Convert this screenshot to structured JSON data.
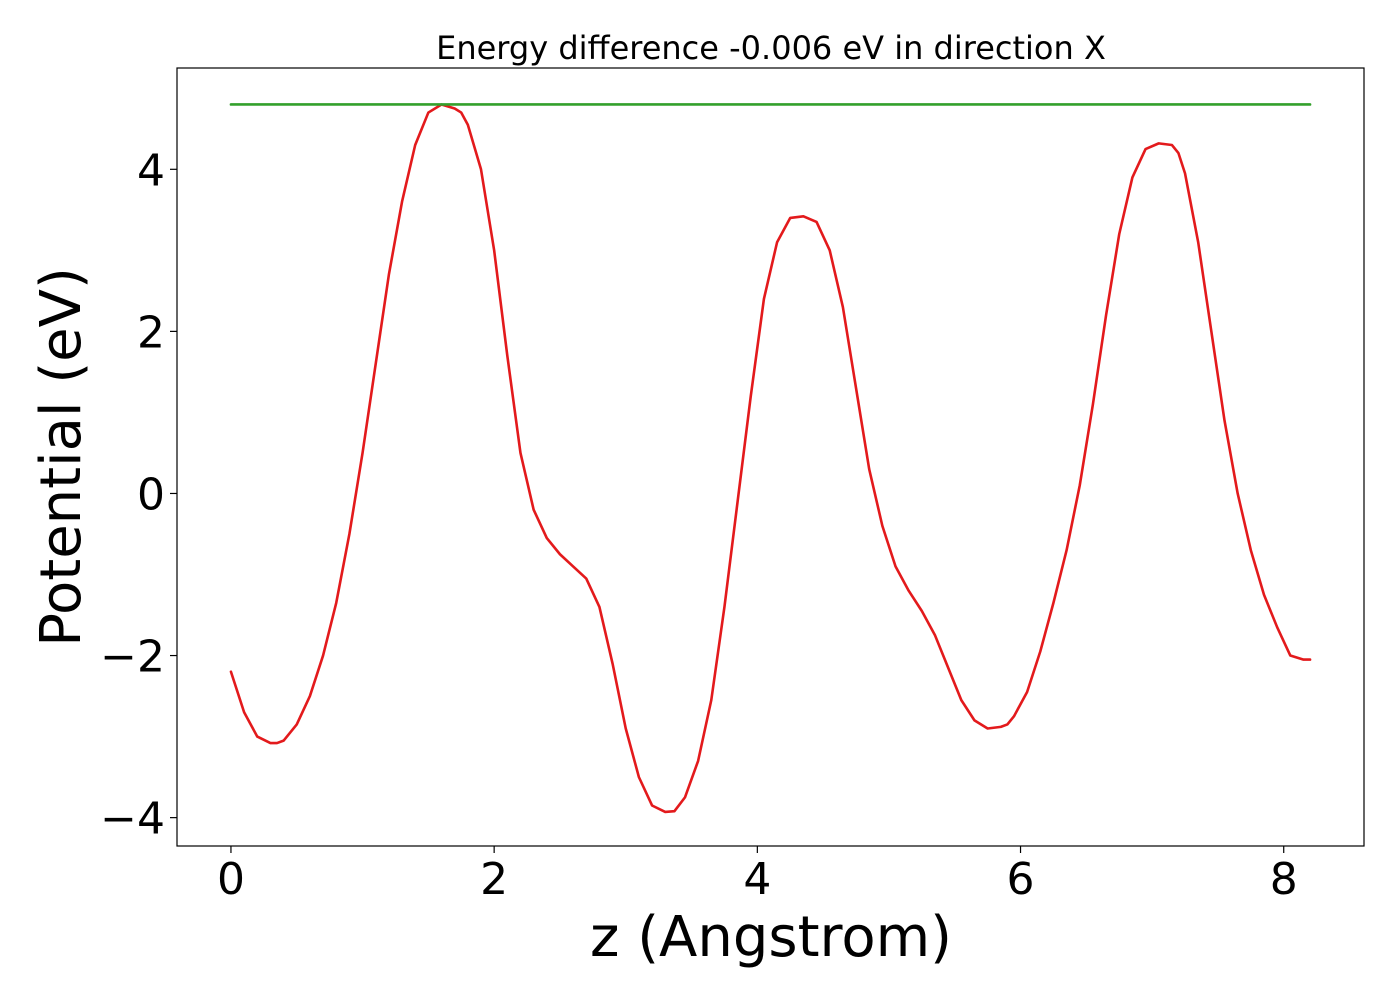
{
  "chart_data": {
    "type": "line",
    "title": "Energy difference -0.006 eV in direction X",
    "xlabel": "z (Angstrom)",
    "ylabel": "Potential (eV)",
    "xlim": [
      -0.41,
      8.61
    ],
    "ylim": [
      -4.35,
      5.25
    ],
    "xticks": [
      0,
      2,
      4,
      6,
      8
    ],
    "yticks": [
      -4,
      -2,
      0,
      2,
      4
    ],
    "xtick_labels": [
      "0",
      "2",
      "4",
      "6",
      "8"
    ],
    "ytick_labels": [
      "−4",
      "−2",
      "0",
      "2",
      "4"
    ],
    "grid": false,
    "legend": "none",
    "series": [
      {
        "color": "#e31a1c",
        "x": [
          0.0,
          0.1,
          0.2,
          0.3,
          0.35,
          0.4,
          0.5,
          0.6,
          0.7,
          0.8,
          0.9,
          1.0,
          1.1,
          1.2,
          1.3,
          1.4,
          1.5,
          1.6,
          1.7,
          1.75,
          1.8,
          1.9,
          2.0,
          2.1,
          2.2,
          2.3,
          2.4,
          2.5,
          2.6,
          2.7,
          2.8,
          2.9,
          3.0,
          3.1,
          3.2,
          3.3,
          3.37,
          3.45,
          3.55,
          3.65,
          3.75,
          3.85,
          3.95,
          4.05,
          4.15,
          4.25,
          4.35,
          4.45,
          4.55,
          4.65,
          4.75,
          4.85,
          4.95,
          5.05,
          5.15,
          5.25,
          5.35,
          5.45,
          5.55,
          5.65,
          5.75,
          5.85,
          5.9,
          5.95,
          6.05,
          6.15,
          6.25,
          6.35,
          6.45,
          6.55,
          6.65,
          6.75,
          6.85,
          6.95,
          7.05,
          7.15,
          7.2,
          7.25,
          7.35,
          7.45,
          7.55,
          7.65,
          7.75,
          7.85,
          7.95,
          8.05,
          8.15,
          8.2
        ],
        "values": [
          -2.2,
          -2.7,
          -3.0,
          -3.08,
          -3.08,
          -3.05,
          -2.85,
          -2.5,
          -2.0,
          -1.35,
          -0.5,
          0.5,
          1.6,
          2.7,
          3.6,
          4.3,
          4.7,
          4.8,
          4.75,
          4.7,
          4.55,
          4.0,
          3.0,
          1.7,
          0.5,
          -0.2,
          -0.55,
          -0.75,
          -0.9,
          -1.05,
          -1.4,
          -2.1,
          -2.9,
          -3.5,
          -3.85,
          -3.93,
          -3.92,
          -3.75,
          -3.3,
          -2.55,
          -1.4,
          -0.1,
          1.2,
          2.4,
          3.1,
          3.4,
          3.42,
          3.35,
          3.0,
          2.3,
          1.3,
          0.3,
          -0.4,
          -0.9,
          -1.2,
          -1.45,
          -1.75,
          -2.15,
          -2.55,
          -2.8,
          -2.9,
          -2.88,
          -2.85,
          -2.75,
          -2.45,
          -1.95,
          -1.35,
          -0.7,
          0.1,
          1.1,
          2.2,
          3.2,
          3.9,
          4.25,
          4.32,
          4.3,
          4.2,
          3.95,
          3.1,
          2.0,
          0.9,
          0.0,
          -0.7,
          -1.25,
          -1.65,
          -2.0,
          -2.05,
          -2.05
        ]
      },
      {
        "color": "#33a02c",
        "x": [
          0.0,
          8.2
        ],
        "values": [
          4.8,
          4.8
        ]
      }
    ]
  }
}
